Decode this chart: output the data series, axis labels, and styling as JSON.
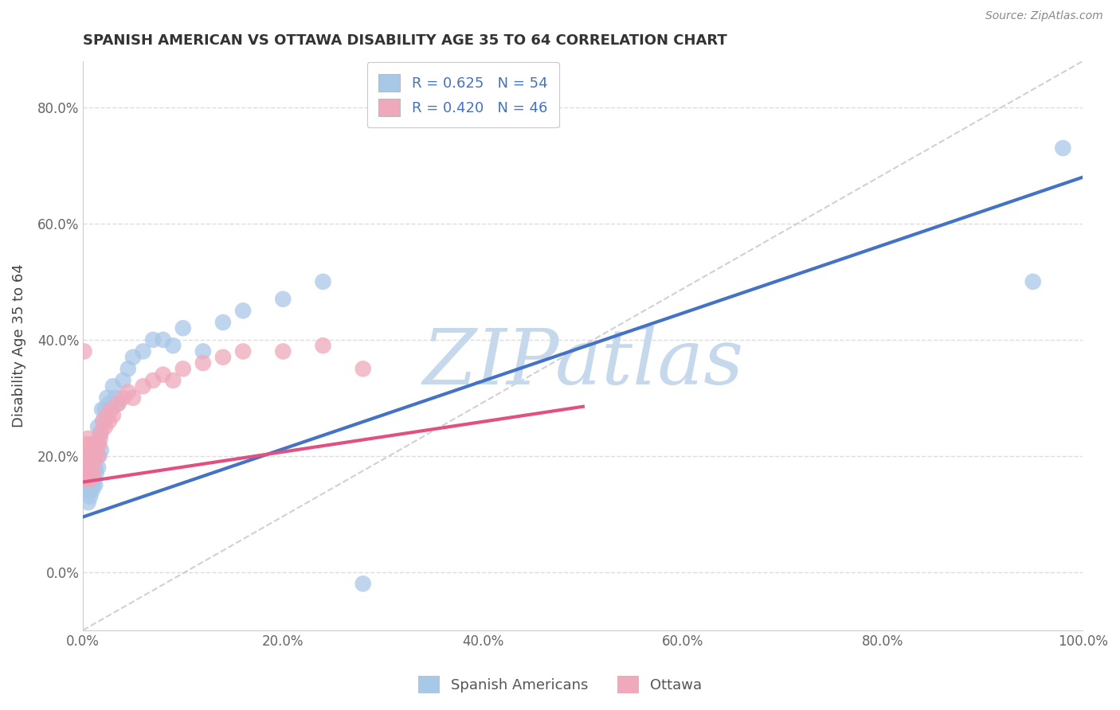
{
  "title": "SPANISH AMERICAN VS OTTAWA DISABILITY AGE 35 TO 64 CORRELATION CHART",
  "source": "Source: ZipAtlas.com",
  "ylabel": "Disability Age 35 to 64",
  "xlim": [
    0,
    1.0
  ],
  "ylim": [
    -0.1,
    0.88
  ],
  "xticks": [
    0.0,
    0.2,
    0.4,
    0.6,
    0.8,
    1.0
  ],
  "xtick_labels": [
    "0.0%",
    "20.0%",
    "40.0%",
    "60.0%",
    "80.0%",
    "100.0%"
  ],
  "yticks": [
    0.0,
    0.2,
    0.4,
    0.6,
    0.8
  ],
  "ytick_labels": [
    "0.0%",
    "20.0%",
    "40.0%",
    "60.0%",
    "80.0%"
  ],
  "blue_color": "#A8C8E8",
  "pink_color": "#F0A8BB",
  "blue_line_color": "#4472C4",
  "pink_line_color": "#E05080",
  "diag_color": "#CCCCCC",
  "watermark_color": "#C5D8EC",
  "legend_label1": "Spanish Americans",
  "legend_label2": "Ottawa",
  "R_blue": 0.625,
  "N_blue": 54,
  "R_pink": 0.42,
  "N_pink": 46,
  "blue_intercept": 0.095,
  "blue_slope": 0.585,
  "pink_intercept": 0.155,
  "pink_slope": 0.26,
  "blue_x": [
    0.001,
    0.002,
    0.003,
    0.003,
    0.004,
    0.004,
    0.005,
    0.005,
    0.005,
    0.006,
    0.006,
    0.007,
    0.007,
    0.008,
    0.008,
    0.009,
    0.009,
    0.01,
    0.01,
    0.011,
    0.011,
    0.012,
    0.012,
    0.013,
    0.014,
    0.015,
    0.015,
    0.016,
    0.017,
    0.018,
    0.019,
    0.02,
    0.022,
    0.024,
    0.026,
    0.03,
    0.032,
    0.035,
    0.04,
    0.045,
    0.05,
    0.06,
    0.07,
    0.08,
    0.09,
    0.1,
    0.12,
    0.14,
    0.16,
    0.2,
    0.24,
    0.28,
    0.95,
    0.98
  ],
  "blue_y": [
    0.15,
    0.17,
    0.14,
    0.18,
    0.15,
    0.2,
    0.12,
    0.16,
    0.19,
    0.14,
    0.17,
    0.13,
    0.16,
    0.15,
    0.19,
    0.14,
    0.17,
    0.15,
    0.18,
    0.16,
    0.2,
    0.15,
    0.18,
    0.17,
    0.22,
    0.18,
    0.25,
    0.2,
    0.24,
    0.21,
    0.28,
    0.26,
    0.28,
    0.3,
    0.29,
    0.32,
    0.3,
    0.29,
    0.33,
    0.35,
    0.37,
    0.38,
    0.4,
    0.4,
    0.39,
    0.42,
    0.38,
    0.43,
    0.45,
    0.47,
    0.5,
    -0.02,
    0.5,
    0.73
  ],
  "pink_x": [
    0.001,
    0.002,
    0.003,
    0.003,
    0.004,
    0.005,
    0.005,
    0.006,
    0.006,
    0.007,
    0.007,
    0.008,
    0.008,
    0.009,
    0.01,
    0.01,
    0.011,
    0.012,
    0.013,
    0.014,
    0.015,
    0.016,
    0.017,
    0.018,
    0.02,
    0.022,
    0.024,
    0.026,
    0.028,
    0.03,
    0.035,
    0.04,
    0.045,
    0.05,
    0.06,
    0.07,
    0.08,
    0.09,
    0.1,
    0.12,
    0.14,
    0.16,
    0.2,
    0.24,
    0.001,
    0.28
  ],
  "pink_y": [
    0.18,
    0.2,
    0.16,
    0.22,
    0.18,
    0.16,
    0.23,
    0.17,
    0.21,
    0.16,
    0.2,
    0.17,
    0.22,
    0.19,
    0.17,
    0.22,
    0.19,
    0.2,
    0.21,
    0.22,
    0.2,
    0.22,
    0.23,
    0.24,
    0.26,
    0.25,
    0.27,
    0.26,
    0.28,
    0.27,
    0.29,
    0.3,
    0.31,
    0.3,
    0.32,
    0.33,
    0.34,
    0.33,
    0.35,
    0.36,
    0.37,
    0.38,
    0.38,
    0.39,
    0.38,
    0.35
  ]
}
